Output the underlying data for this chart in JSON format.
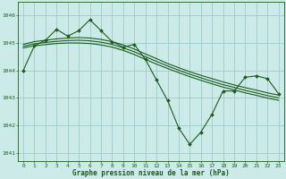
{
  "title": "Graphe pression niveau de la mer (hPa)",
  "background_color": "#cceae8",
  "grid_color": "#99cccc",
  "line_color": "#1a5c1a",
  "xlim": [
    -0.5,
    23.5
  ],
  "ylim": [
    1040.7,
    1046.5
  ],
  "yticks": [
    1041,
    1042,
    1043,
    1044,
    1045,
    1046
  ],
  "xticks": [
    0,
    1,
    2,
    3,
    4,
    5,
    6,
    7,
    8,
    9,
    10,
    11,
    12,
    13,
    14,
    15,
    16,
    17,
    18,
    19,
    20,
    21,
    22,
    23
  ],
  "series1_x": [
    0,
    1,
    2,
    3,
    4,
    5,
    6,
    7,
    8,
    9,
    10,
    11,
    12,
    13,
    14,
    15,
    16,
    17,
    18,
    19,
    20,
    21,
    22,
    23
  ],
  "series1_y": [
    1044.0,
    1044.9,
    1045.1,
    1045.5,
    1045.25,
    1045.45,
    1045.85,
    1045.45,
    1045.05,
    1044.85,
    1044.95,
    1044.4,
    1043.65,
    1042.9,
    1041.9,
    1041.3,
    1041.75,
    1042.4,
    1043.25,
    1043.25,
    1043.75,
    1043.8,
    1043.7,
    1043.15
  ],
  "series2_x": [
    0,
    1,
    2,
    3,
    4,
    5,
    6,
    7,
    8,
    9,
    10,
    11,
    12,
    13,
    14,
    15,
    16,
    17,
    18,
    19,
    20,
    21,
    22,
    23
  ],
  "series2_y": [
    1044.95,
    1045.05,
    1045.1,
    1045.15,
    1045.18,
    1045.2,
    1045.18,
    1045.13,
    1045.05,
    1044.93,
    1044.78,
    1044.6,
    1044.43,
    1044.25,
    1044.1,
    1043.95,
    1043.82,
    1043.7,
    1043.58,
    1043.47,
    1043.37,
    1043.28,
    1043.18,
    1043.1
  ],
  "series3_x": [
    0,
    1,
    2,
    3,
    4,
    5,
    6,
    7,
    8,
    9,
    10,
    11,
    12,
    13,
    14,
    15,
    16,
    17,
    18,
    19,
    20,
    21,
    22,
    23
  ],
  "series3_y": [
    1044.88,
    1044.97,
    1045.02,
    1045.06,
    1045.09,
    1045.1,
    1045.08,
    1045.03,
    1044.95,
    1044.82,
    1044.68,
    1044.5,
    1044.33,
    1044.16,
    1044.01,
    1043.86,
    1043.73,
    1043.6,
    1043.48,
    1043.38,
    1043.27,
    1043.18,
    1043.08,
    1043.0
  ],
  "series4_x": [
    0,
    1,
    2,
    3,
    4,
    5,
    6,
    7,
    8,
    9,
    10,
    11,
    12,
    13,
    14,
    15,
    16,
    17,
    18,
    19,
    20,
    21,
    22,
    23
  ],
  "series4_y": [
    1044.82,
    1044.9,
    1044.94,
    1044.98,
    1045.0,
    1045.0,
    1044.98,
    1044.93,
    1044.85,
    1044.73,
    1044.58,
    1044.4,
    1044.23,
    1044.07,
    1043.92,
    1043.77,
    1043.64,
    1043.51,
    1043.39,
    1043.29,
    1043.18,
    1043.09,
    1042.99,
    1042.91
  ]
}
